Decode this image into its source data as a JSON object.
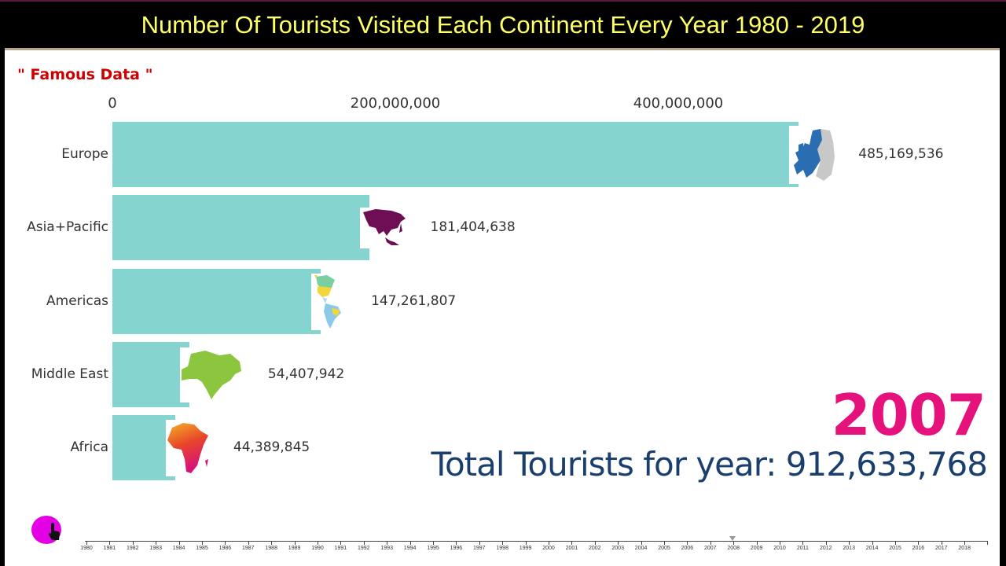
{
  "header": {
    "title": "Number Of Tourists Visited Each Continent Every Year 1980 - 2019"
  },
  "brand": {
    "label": "\" Famous Data \""
  },
  "display": {
    "year": "2007",
    "total_label": "Total Tourists for year: 912,633,768"
  },
  "colors": {
    "bar": "#85d4d0",
    "year": "#e5127c",
    "total": "#1a3e6e",
    "title": "#ffff66",
    "brand": "#cc0000",
    "play_button": "#e400e4"
  },
  "chart_data": {
    "type": "bar",
    "orientation": "horizontal",
    "title": "Number Of Tourists Visited Each Continent Every Year 1980 - 2019",
    "subtitle": "2007",
    "annotation": "Total Tourists for year: 912,633,768",
    "xlabel": "",
    "ylabel": "",
    "xlim": [
      0,
      500000000
    ],
    "x_ticks": [
      {
        "value": 0,
        "label": "0"
      },
      {
        "value": 200000000,
        "label": "200,000,000"
      },
      {
        "value": 400000000,
        "label": "400,000,000"
      }
    ],
    "categories": [
      "Europe",
      "Asia+Pacific",
      "Americas",
      "Middle East",
      "Africa"
    ],
    "values": [
      485169536,
      181404638,
      147261807,
      54407942,
      44389845
    ],
    "value_labels": [
      "485,169,536",
      "181,404,638",
      "147,261,807",
      "54,407,942",
      "44,389,845"
    ],
    "icons": [
      "europe-map-icon",
      "asia-pacific-map-icon",
      "americas-map-icon",
      "middle-east-map-icon",
      "africa-map-icon"
    ],
    "grid": false,
    "legend": "none"
  },
  "timeline": {
    "years": [
      "1980",
      "1981",
      "1982",
      "1983",
      "1984",
      "1985",
      "1986",
      "1987",
      "1988",
      "1989",
      "1990",
      "1991",
      "1992",
      "1993",
      "1994",
      "1995",
      "1996",
      "1997",
      "1998",
      "1999",
      "2000",
      "2001",
      "2002",
      "2003",
      "2004",
      "2005",
      "2006",
      "2007",
      "2008",
      "2009",
      "2010",
      "2011",
      "2012",
      "2013",
      "2014",
      "2015",
      "2016",
      "2017",
      "2018"
    ],
    "marker_year": "2008"
  }
}
